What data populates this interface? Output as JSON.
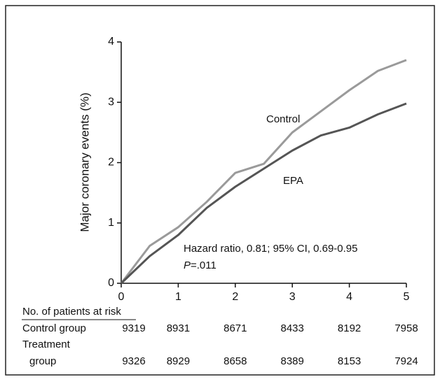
{
  "chart_data": {
    "type": "line",
    "y_label": "Major coronary events (%)",
    "x": [
      0,
      0.5,
      1,
      1.5,
      2,
      2.5,
      3,
      3.5,
      4,
      4.5,
      5
    ],
    "series": [
      {
        "name": "Control",
        "color": "#9a9a9a",
        "values": [
          0,
          0.62,
          0.93,
          1.35,
          1.83,
          1.98,
          2.5,
          2.85,
          3.2,
          3.52,
          3.7
        ]
      },
      {
        "name": "EPA",
        "color": "#555555",
        "values": [
          0,
          0.45,
          0.8,
          1.25,
          1.6,
          1.9,
          2.2,
          2.45,
          2.58,
          2.8,
          2.98
        ]
      }
    ],
    "xlim": [
      0,
      5
    ],
    "ylim": [
      0,
      4
    ],
    "xticks": [
      0,
      1,
      2,
      3,
      4,
      5
    ],
    "yticks": [
      0,
      1,
      2,
      3,
      4
    ],
    "annotation": {
      "line1": "Hazard ratio, 0.81; 95% CI, 0.69-0.95",
      "p_symbol": "P",
      "p_value": "=.011"
    },
    "risk_table": {
      "title": "No. of patients at risk",
      "rows": [
        {
          "label_lines": [
            "Control group"
          ],
          "values": [
            9319,
            8931,
            8671,
            8433,
            8192,
            7958
          ]
        },
        {
          "label_lines": [
            "Treatment",
            "group"
          ],
          "values": [
            9326,
            8929,
            8658,
            8389,
            8153,
            7924
          ]
        }
      ]
    }
  }
}
